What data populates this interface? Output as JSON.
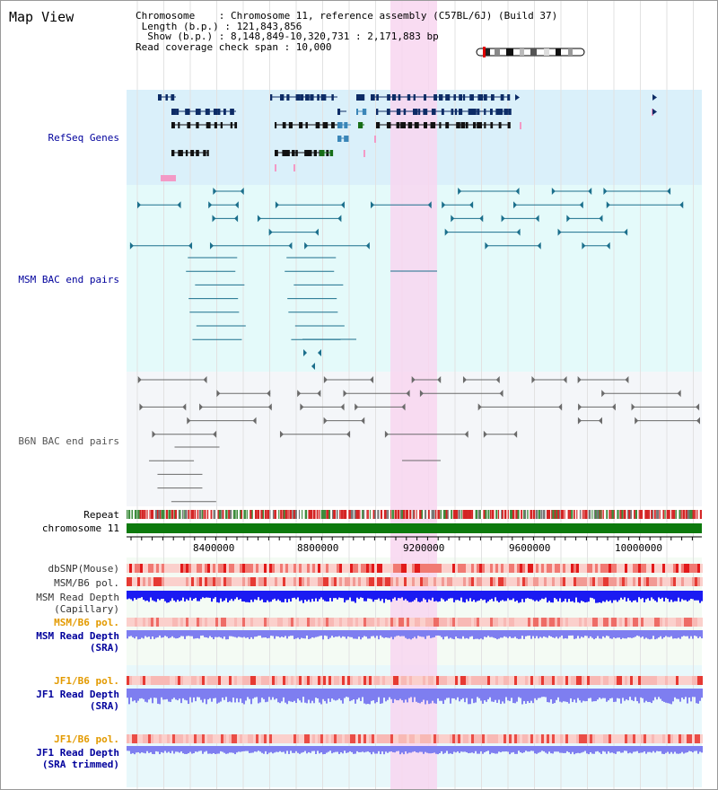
{
  "title": "Map View",
  "info": {
    "chromosome": "Chromosome    : Chromosome 11, reference assembly (C57BL/6J) (Build 37)",
    "length": " Length (b.p.) : 121,843,856",
    "show": "  Show (b.p.) : 8,148,849-10,320,731 : 2,171,883 bp",
    "span": "Read coverage check span : 10,000"
  },
  "tracks": {
    "refseq": "RefSeq Genes",
    "msm_bac": "MSM BAC end pairs",
    "b6n_bac": "B6N BAC end pairs",
    "repeat": "Repeat",
    "chromosome": "chromosome 11",
    "dbsnp": "dbSNP(Mouse)",
    "msm_b6_pol_1": "MSM/B6 pol.",
    "msm_read_depth_cap_1": "MSM Read Depth",
    "msm_read_depth_cap_2": "(Capillary)",
    "msm_b6_pol_2": "MSM/B6 pol.",
    "msm_read_depth_sra_1": "MSM Read Depth",
    "msm_read_depth_sra_2": "(SRA)",
    "jf1_b6_pol_1": "JF1/B6 pol.",
    "jf1_read_depth_sra_1": "JF1 Read Depth",
    "jf1_read_depth_sra_2": "(SRA)",
    "jf1_b6_pol_2": "JF1/B6 pol.",
    "jf1_read_depth_trim_1": "JF1 Read Depth",
    "jf1_read_depth_trim_2": "(SRA trimmed)"
  },
  "axis": {
    "ticks": [
      "8400000",
      "8800000",
      "9200000",
      "9600000",
      "10000000"
    ]
  },
  "colors": {
    "refseq_bg": "#daf0fa",
    "msm_bg": "#e4fafa",
    "b6n_bg": "#f4f6f9",
    "highlight": "#f8d6f0",
    "gene": "#0d2c66",
    "msm_pair": "#1b6f8c",
    "b6n_pair": "#6a6a6a",
    "chromosome_bar": "#0d7a0d",
    "depth_dark": "#1b1bf2",
    "depth_light": "#7e7ef0",
    "orange_label": "#e39a00",
    "blue_label": "#00009c"
  }
}
